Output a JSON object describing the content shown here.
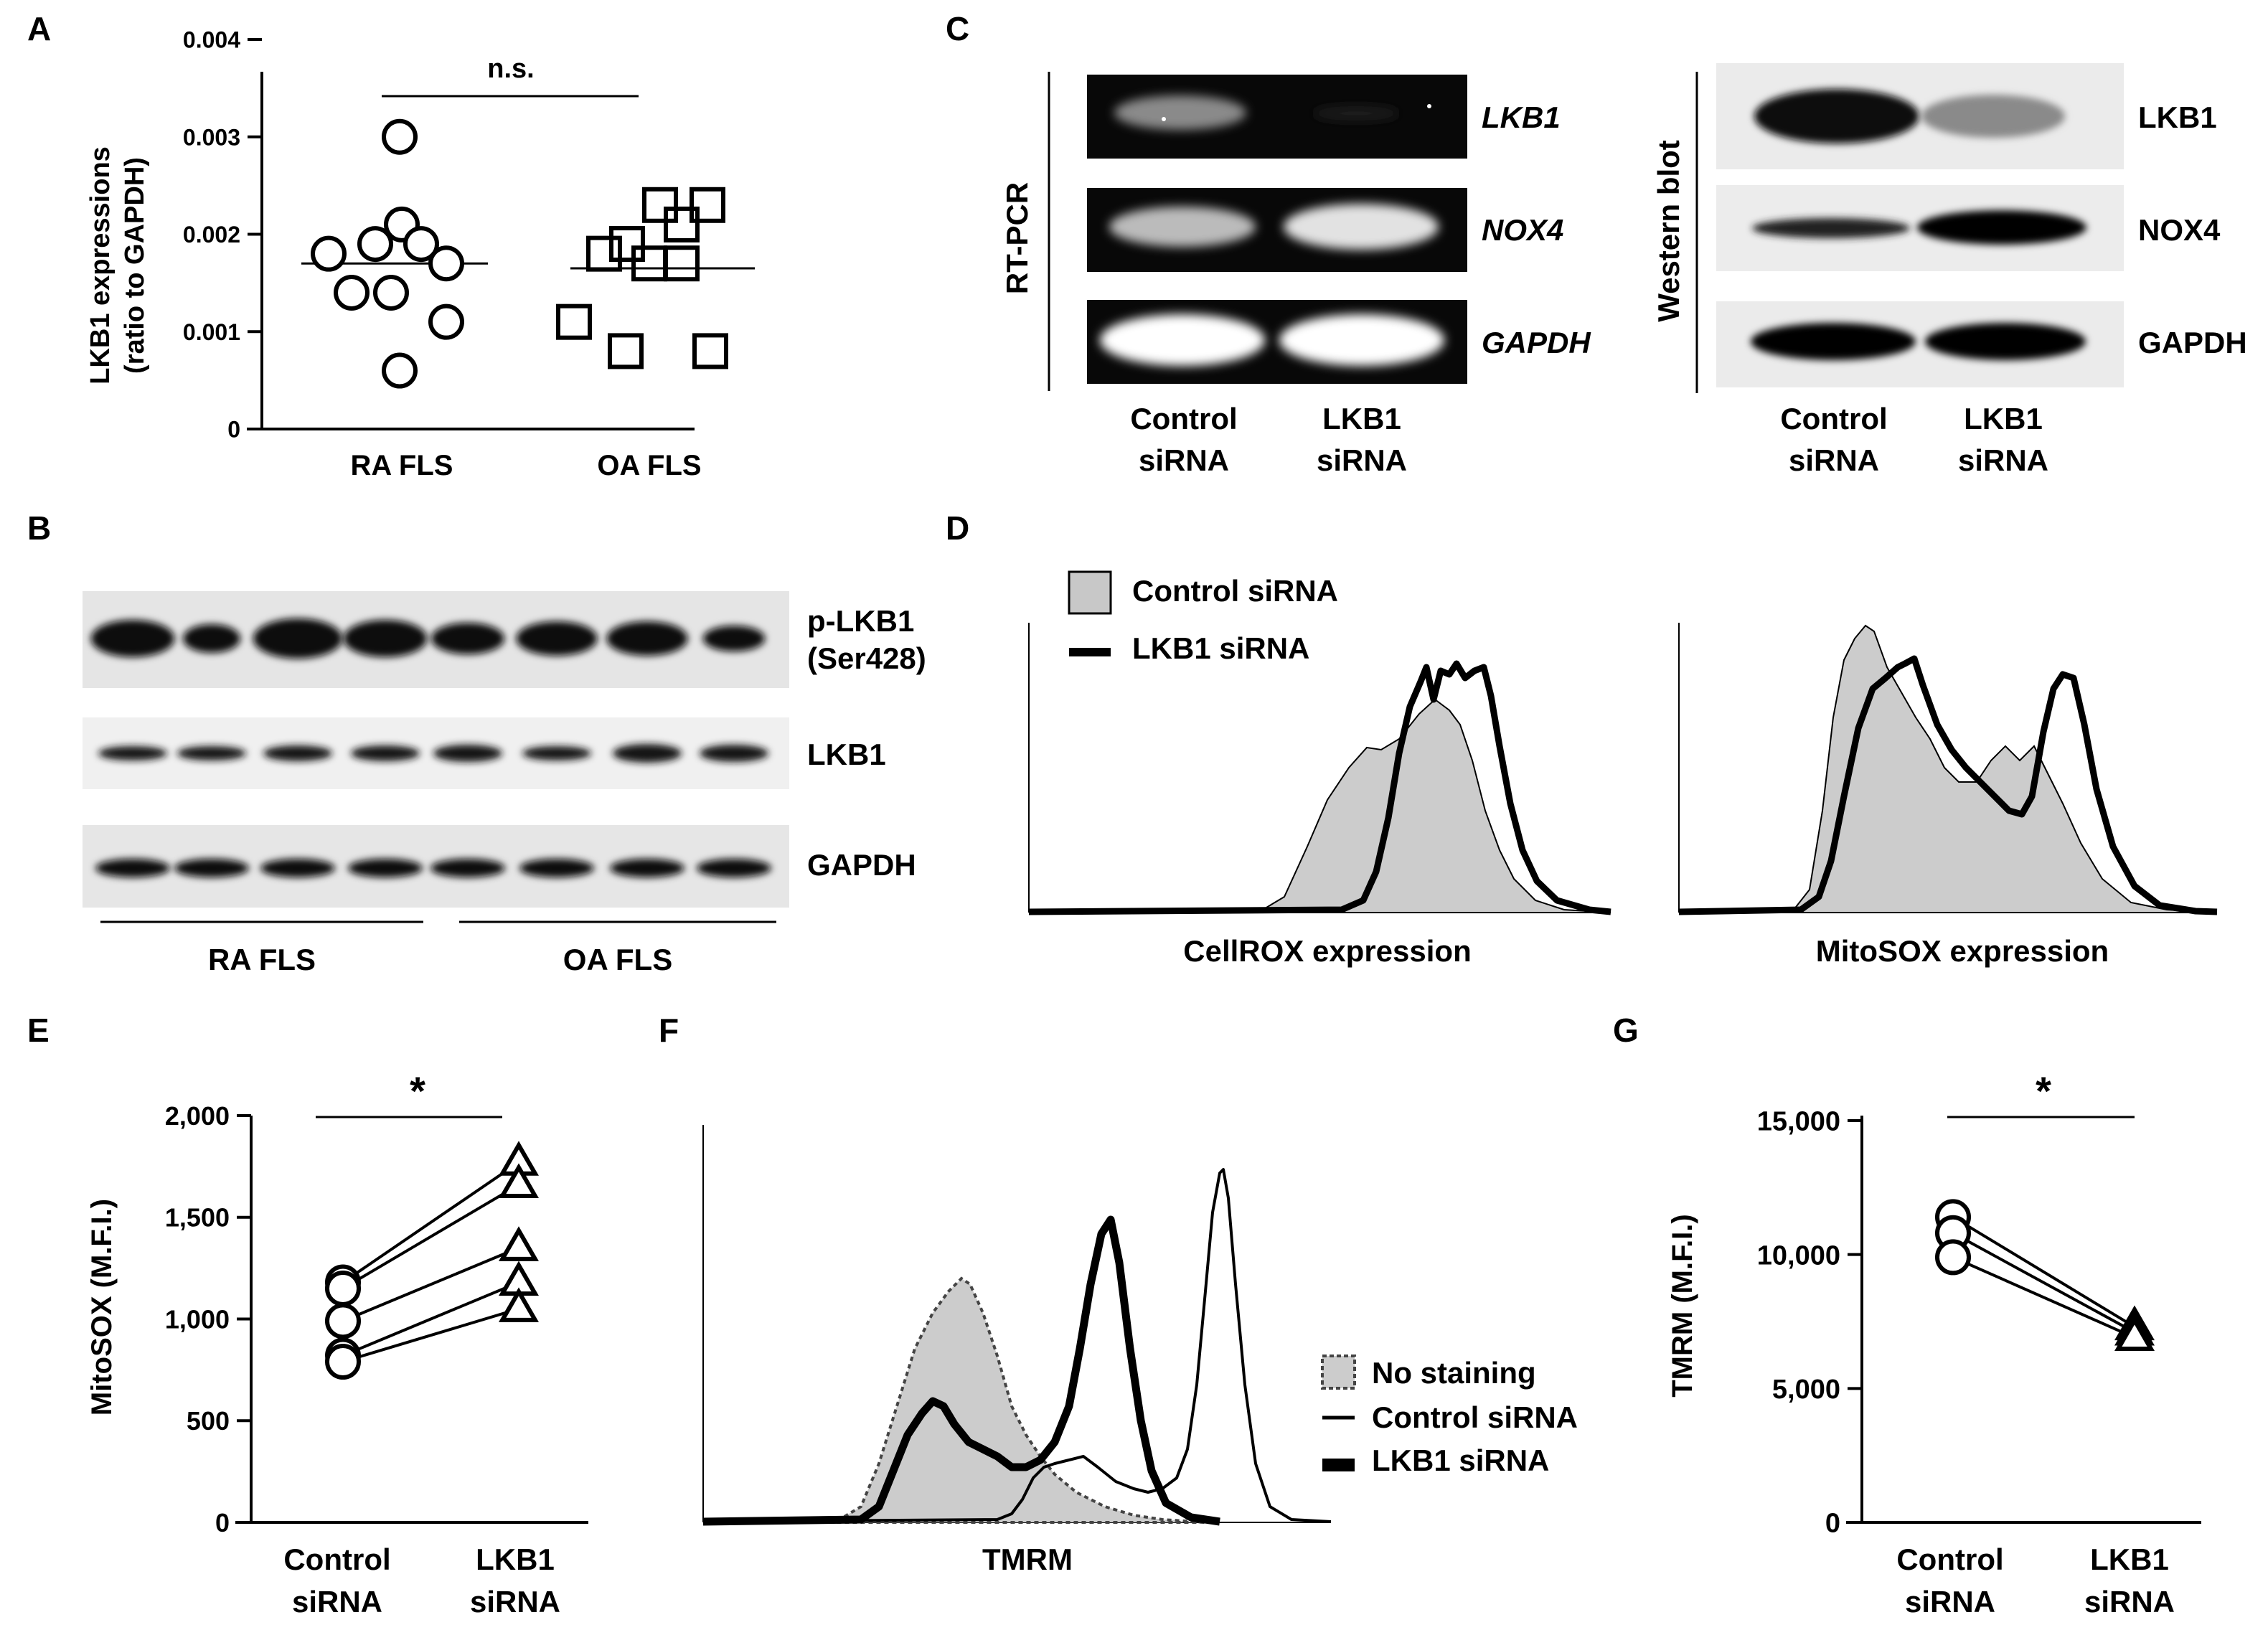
{
  "panels": {
    "A": {
      "letter": "A",
      "ylabel_line1": "LKB1 expressions",
      "ylabel_line2": "(ratio to GAPDH)",
      "significance": "n.s.",
      "categories": [
        "RA FLS",
        "OA FLS"
      ]
    },
    "B": {
      "letter": "B",
      "bands": [
        "p-LKB1",
        "(Ser428)",
        "LKB1",
        "GAPDH"
      ],
      "groups": [
        "RA FLS",
        "OA FLS"
      ]
    },
    "C": {
      "letter": "C",
      "rtpcr_title": "RT-PCR",
      "rtpcr_genes": [
        "LKB1",
        "NOX4",
        "GAPDH"
      ],
      "wb_title": "Western blot",
      "wb_proteins": [
        "LKB1",
        "NOX4",
        "GAPDH"
      ],
      "lane1": [
        "Control",
        "siRNA"
      ],
      "lane2": [
        "LKB1",
        "siRNA"
      ]
    },
    "D": {
      "letter": "D",
      "legend": [
        "Control siRNA",
        "LKB1 siRNA"
      ],
      "xlabel_left": "CellROX expression",
      "xlabel_right": "MitoSOX expression"
    },
    "E": {
      "letter": "E",
      "ylabel": "MitoSOX (M.F.I.)",
      "significance": "*",
      "xcat1": [
        "Control",
        "siRNA"
      ],
      "xcat2": [
        "LKB1",
        "siRNA"
      ]
    },
    "F": {
      "letter": "F",
      "xlabel": "TMRM",
      "legend": [
        "No staining",
        "Control siRNA",
        "LKB1 siRNA"
      ]
    },
    "G": {
      "letter": "G",
      "ylabel": "TMRM (M.F.I.)",
      "significance": "*",
      "xcat1": [
        "Control",
        "siRNA"
      ],
      "xcat2": [
        "LKB1",
        "siRNA"
      ]
    }
  },
  "chart_data": [
    {
      "panel": "A",
      "type": "scatter",
      "categories": [
        "RA FLS",
        "OA FLS"
      ],
      "ylim": [
        0,
        0.004
      ],
      "yticks": [
        "0",
        "0.001",
        "0.002",
        "0.003",
        "0.004"
      ],
      "series": [
        {
          "name": "RA FLS",
          "values": [
            0.003,
            0.0021,
            0.0019,
            0.0019,
            0.0018,
            0.0017,
            0.0014,
            0.0014,
            0.0011,
            0.0006
          ]
        },
        {
          "name": "OA FLS",
          "values": [
            0.0023,
            0.0023,
            0.0021,
            0.0019,
            0.0018,
            0.0017,
            0.0017,
            0.0011,
            0.0008,
            0.0008
          ]
        }
      ],
      "means": [
        0.0017,
        0.00165
      ]
    },
    {
      "panel": "E",
      "type": "line",
      "categories": [
        "Control siRNA",
        "LKB1 siRNA"
      ],
      "ylim": [
        0,
        2000
      ],
      "yticks": [
        "0",
        "500",
        "1,000",
        "1,500",
        "2,000"
      ],
      "pairs": [
        [
          1180,
          1770
        ],
        [
          1150,
          1660
        ],
        [
          990,
          1350
        ],
        [
          820,
          1180
        ],
        [
          790,
          1050
        ]
      ]
    },
    {
      "panel": "G",
      "type": "line",
      "categories": [
        "Control siRNA",
        "LKB1 siRNA"
      ],
      "ylim": [
        0,
        15000
      ],
      "yticks": [
        "0",
        "5,000",
        "10,000",
        "15,000"
      ],
      "pairs": [
        [
          11400,
          7300
        ],
        [
          10800,
          7100
        ],
        [
          9900,
          6900
        ]
      ]
    }
  ]
}
